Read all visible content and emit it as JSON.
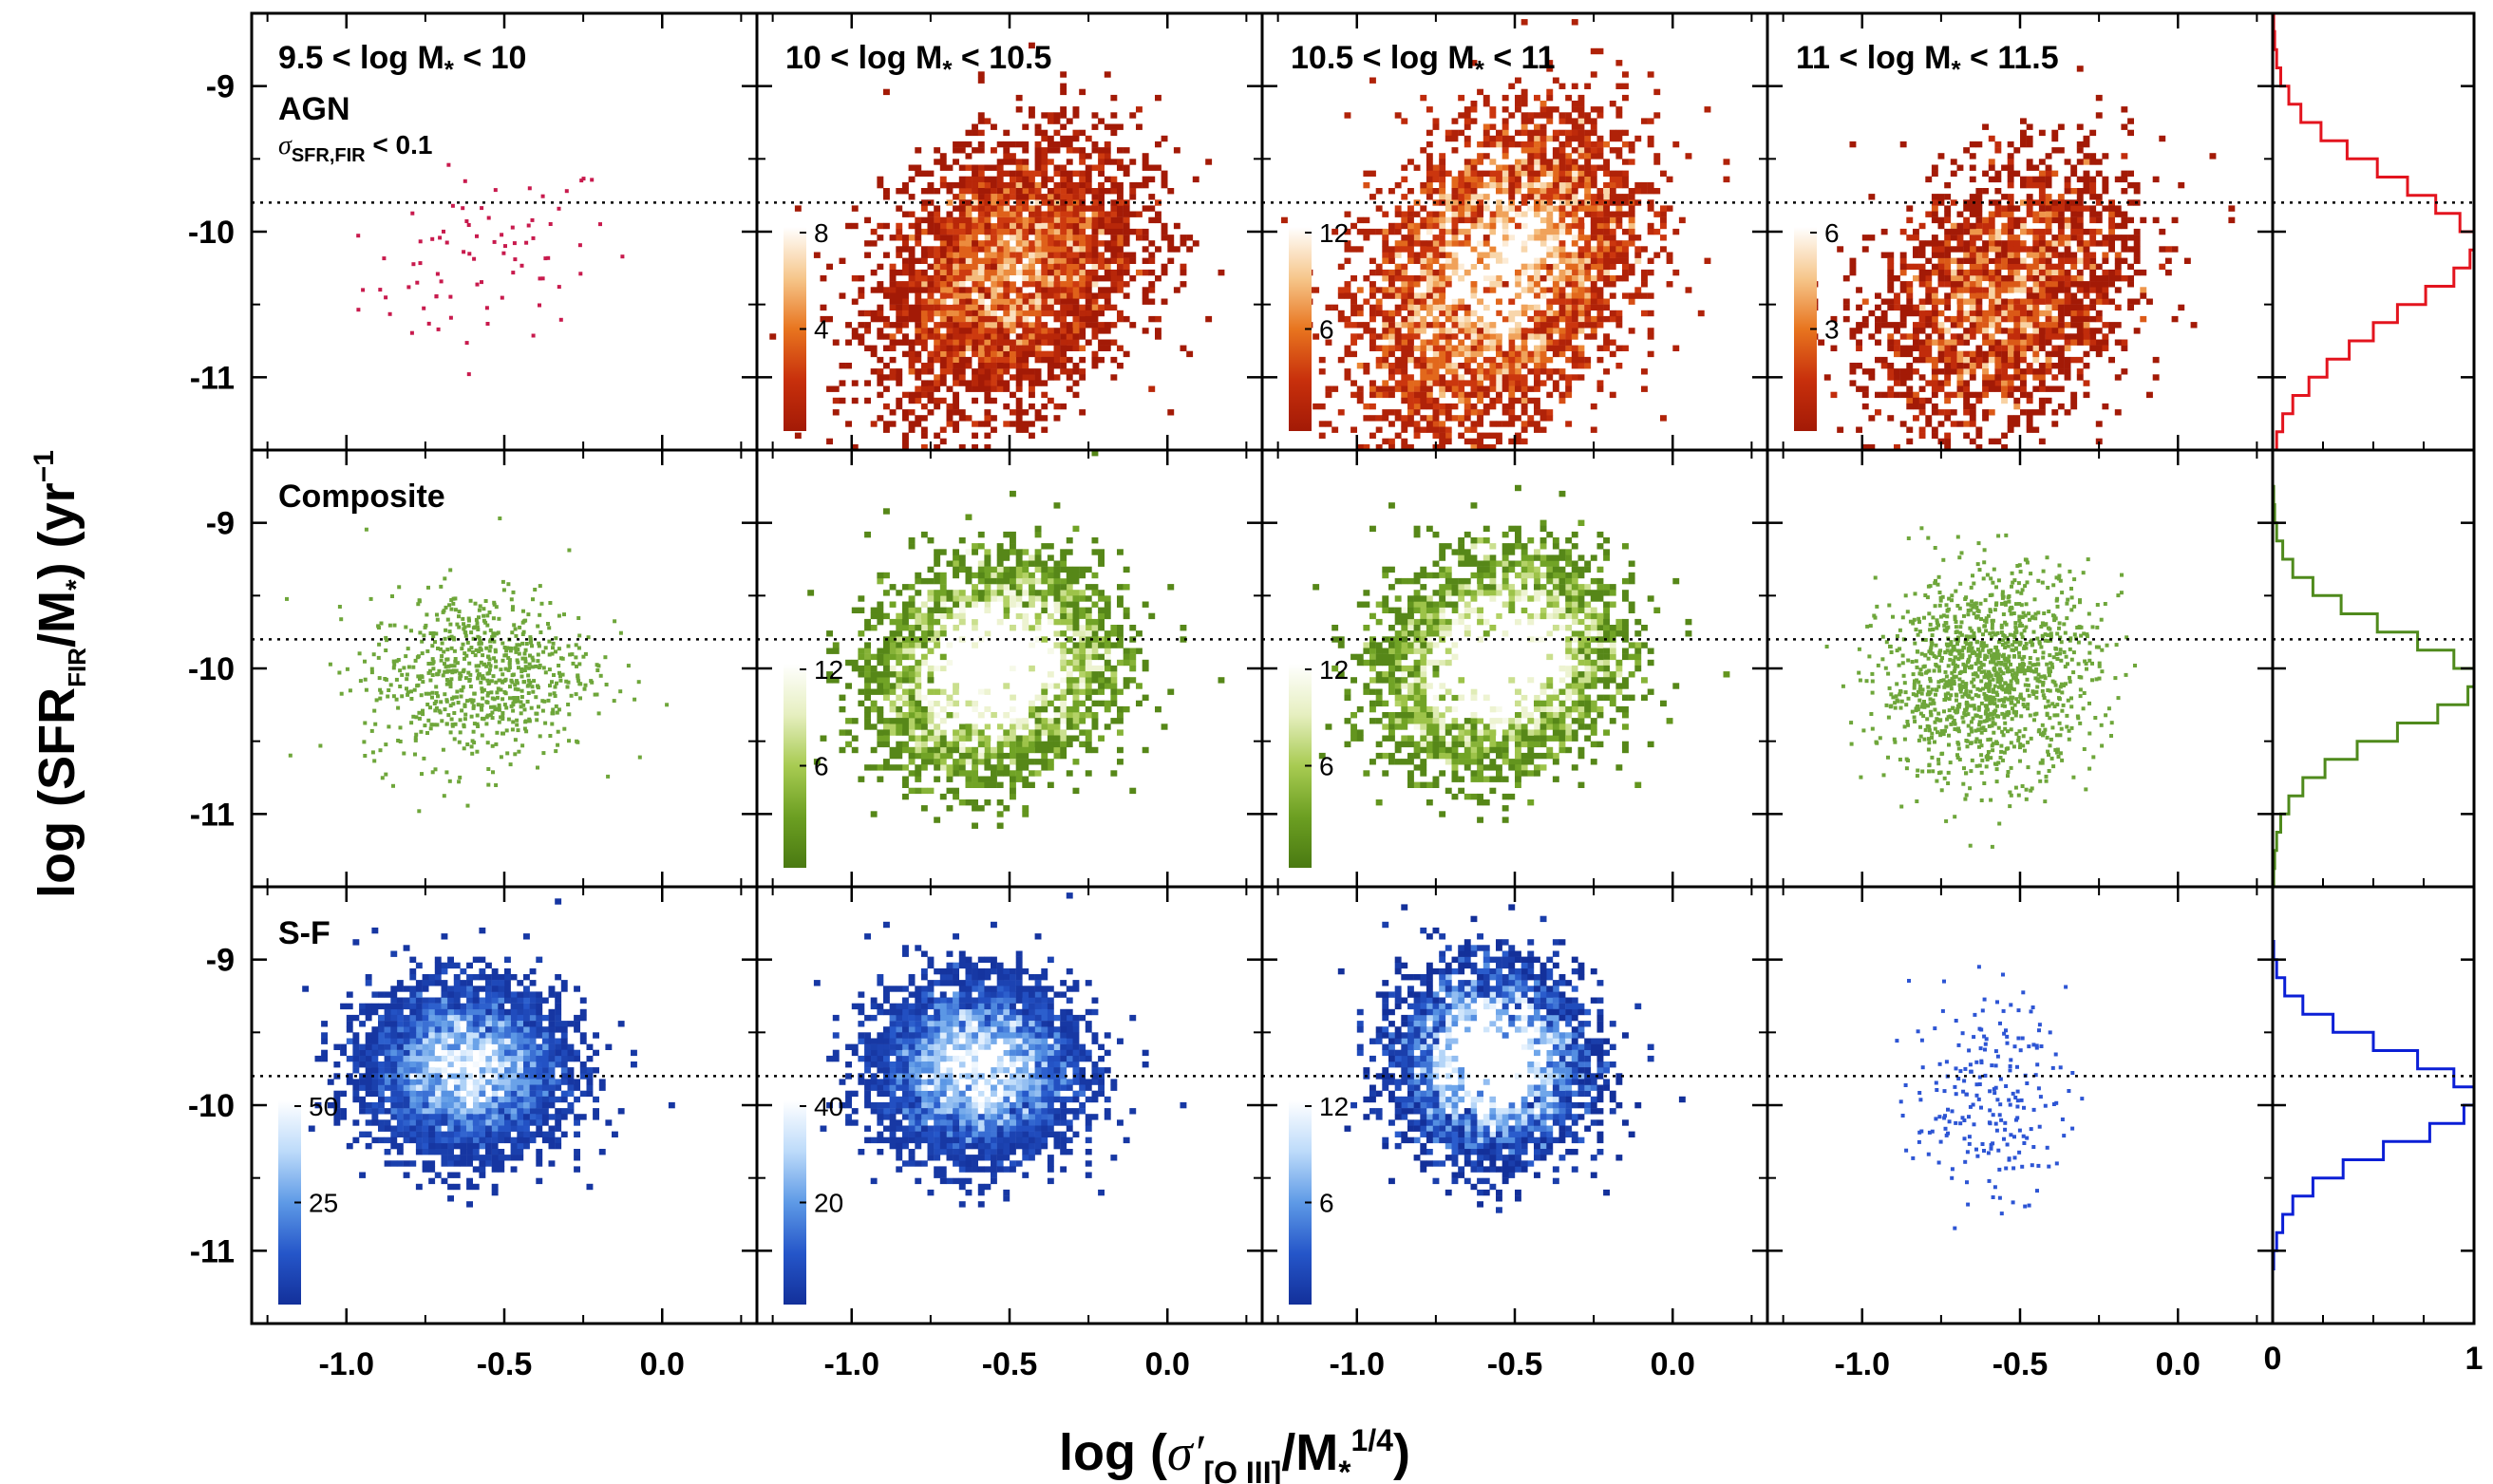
{
  "chart_data": {
    "type": "scatter",
    "layout": {
      "rows": 3,
      "cols": 4,
      "marginal_histogram": "right"
    },
    "xlabel": "log (σ′[O III]/M*1/4)",
    "ylabel": "log (SFRFIR/M*) (yr−1)",
    "xlim": [
      -1.3,
      0.3
    ],
    "ylim": [
      -11.5,
      -8.5
    ],
    "x_ticks": [
      -1.0,
      -0.5,
      0.0
    ],
    "x_tick_labels": [
      "-1.0",
      "-0.5",
      "0.0"
    ],
    "y_ticks": [
      -9,
      -10,
      -11
    ],
    "y_tick_labels": [
      "-9",
      "-10",
      "-11"
    ],
    "hist_xlim": [
      0,
      1
    ],
    "hist_tick_labels": [
      "0",
      "1"
    ],
    "reference_line_y": -9.8,
    "columns": [
      {
        "label": "9.5 < log M* < 10",
        "text": "9.5 < log M",
        "sub": "*",
        "rest": " < 10"
      },
      {
        "label": "10 < log M* < 10.5",
        "text": "10 < log M",
        "sub": "*",
        "rest": " < 10.5"
      },
      {
        "label": "10.5 < log M* < 11",
        "text": "10.5 < log M",
        "sub": "*",
        "rest": " < 11"
      },
      {
        "label": "11 < log M* < 11.5",
        "text": "11 < log M",
        "sub": "*",
        "rest": " < 11.5"
      }
    ],
    "rows": [
      {
        "name": "AGN",
        "note": "σSFR,FIR < 0.1",
        "color": "#d0021b",
        "hist_color": "#e3141e",
        "colormap": [
          "#ffffff",
          "#f6c78c",
          "#e8751f",
          "#c8300c",
          "#a31a06"
        ],
        "panels": [
          {
            "n": 80,
            "x0": -0.55,
            "y0": -10.2,
            "sx": 0.2,
            "sy": 0.3,
            "rho": 0.3,
            "mode": "points",
            "point_color": "#c81a4d",
            "colorbar": null
          },
          {
            "n": 3800,
            "x0": -0.5,
            "y0": -10.3,
            "sx": 0.2,
            "sy": 0.45,
            "rho": 0.3,
            "mode": "density",
            "colorbar": {
              "max": 8,
              "ticks": [
                8,
                4
              ]
            }
          },
          {
            "n": 11000,
            "x0": -0.55,
            "y0": -10.3,
            "sx": 0.2,
            "sy": 0.5,
            "rho": 0.35,
            "mode": "density",
            "colorbar": {
              "max": 12,
              "ticks": [
                12,
                6
              ]
            }
          },
          {
            "n": 2400,
            "x0": -0.55,
            "y0": -10.45,
            "sx": 0.2,
            "sy": 0.45,
            "rho": 0.3,
            "mode": "density",
            "colorbar": {
              "max": 6,
              "ticks": [
                6,
                3
              ]
            }
          }
        ],
        "hist": {
          "bin_width": 0.125,
          "ymin": -11.5,
          "values": [
            0.02,
            0.05,
            0.1,
            0.18,
            0.27,
            0.38,
            0.5,
            0.62,
            0.76,
            0.9,
            0.98,
            1.0,
            0.93,
            0.81,
            0.67,
            0.52,
            0.37,
            0.24,
            0.14,
            0.08,
            0.04,
            0.02,
            0.01,
            0.005
          ]
        }
      },
      {
        "name": "Composite",
        "note": "",
        "color": "#5a8e1e",
        "hist_color": "#4f8a1c",
        "colormap": [
          "#ffffff",
          "#e6efc0",
          "#a8cb52",
          "#6c9f22",
          "#4a7a12"
        ],
        "panels": [
          {
            "n": 750,
            "x0": -0.58,
            "y0": -10.05,
            "sx": 0.18,
            "sy": 0.3,
            "rho": 0.1,
            "mode": "points",
            "point_color": "#6ea63a",
            "colorbar": null
          },
          {
            "n": 11000,
            "x0": -0.55,
            "y0": -10.0,
            "sx": 0.17,
            "sy": 0.33,
            "rho": 0.15,
            "mode": "density",
            "colorbar": {
              "max": 12,
              "ticks": [
                12,
                6
              ]
            }
          },
          {
            "n": 11000,
            "x0": -0.55,
            "y0": -9.95,
            "sx": 0.17,
            "sy": 0.33,
            "rho": 0.15,
            "mode": "density",
            "colorbar": {
              "max": 12,
              "ticks": [
                12,
                6
              ]
            }
          },
          {
            "n": 1300,
            "x0": -0.6,
            "y0": -10.05,
            "sx": 0.17,
            "sy": 0.35,
            "rho": 0.1,
            "mode": "points",
            "point_color": "#6ea63a",
            "colorbar": null
          }
        ],
        "hist": {
          "bin_width": 0.125,
          "ymin": -11.5,
          "values": [
            0.005,
            0.01,
            0.02,
            0.04,
            0.08,
            0.15,
            0.26,
            0.42,
            0.62,
            0.82,
            0.97,
            1.0,
            0.9,
            0.72,
            0.52,
            0.34,
            0.2,
            0.1,
            0.05,
            0.02,
            0.01,
            0.005,
            0.0,
            0.0
          ]
        }
      },
      {
        "name": "S-F",
        "note": "",
        "color": "#1536c8",
        "hist_color": "#0b1fd6",
        "colormap": [
          "#ffffff",
          "#bddbfa",
          "#5e9ae6",
          "#2556c9",
          "#13309a"
        ],
        "panels": [
          {
            "n": 16000,
            "x0": -0.62,
            "y0": -9.75,
            "sx": 0.15,
            "sy": 0.27,
            "rho": 0.0,
            "mode": "density",
            "colorbar": {
              "max": 50,
              "ticks": [
                50,
                25
              ]
            }
          },
          {
            "n": 15000,
            "x0": -0.6,
            "y0": -9.75,
            "sx": 0.15,
            "sy": 0.28,
            "rho": 0.0,
            "mode": "density",
            "colorbar": {
              "max": 40,
              "ticks": [
                40,
                20
              ]
            }
          },
          {
            "n": 7000,
            "x0": -0.57,
            "y0": -9.7,
            "sx": 0.14,
            "sy": 0.3,
            "rho": 0.0,
            "mode": "density",
            "colorbar": {
              "max": 12,
              "ticks": [
                12,
                6
              ]
            }
          },
          {
            "n": 220,
            "x0": -0.6,
            "y0": -9.95,
            "sx": 0.12,
            "sy": 0.35,
            "rho": 0.0,
            "mode": "points",
            "point_color": "#2d55d4",
            "colorbar": null
          }
        ],
        "hist": {
          "bin_width": 0.125,
          "ymin": -11.5,
          "values": [
            0.0,
            0.0,
            0.0,
            0.005,
            0.02,
            0.05,
            0.1,
            0.2,
            0.35,
            0.55,
            0.78,
            0.95,
            1.0,
            0.9,
            0.72,
            0.5,
            0.3,
            0.15,
            0.06,
            0.02,
            0.005,
            0.0,
            0.0,
            0.0
          ]
        }
      }
    ]
  }
}
